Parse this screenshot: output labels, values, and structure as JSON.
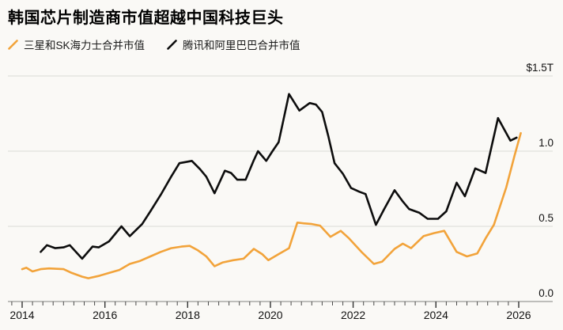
{
  "header": {
    "title": "韩国芯片制造商市值超越中国科技巨头"
  },
  "legend": [
    {
      "label": "三星和SK海力士合并市值",
      "color": "#f2a33a"
    },
    {
      "label": "腾讯和阿里巴巴合并市值",
      "color": "#0d0d0d"
    }
  ],
  "chart_data": {
    "type": "line",
    "title": "韩国芯片制造商市值超越中国科技巨头",
    "unit": "$T",
    "legend_position": "top-left",
    "grid": "horizontal",
    "x_axis": {
      "tick_labels": [
        "2014",
        "2016",
        "2018",
        "2020",
        "2022",
        "2024",
        "2026"
      ],
      "tick_years": [
        2014,
        2016,
        2018,
        2020,
        2022,
        2024,
        2026
      ],
      "minor_tick_step_years": 0.25,
      "minor_tick_start": 2013.75,
      "minor_tick_end": 2026.0,
      "range": [
        2013.6,
        2026.9
      ]
    },
    "y_axis": {
      "position": "right",
      "range": [
        0,
        1.5
      ],
      "ticks": [
        {
          "value": 1.5,
          "label": "$1.5T"
        },
        {
          "value": 1.0,
          "label": "1.0"
        },
        {
          "value": 0.5,
          "label": "0.5"
        },
        {
          "value": 0.0,
          "label": "0.0"
        }
      ]
    },
    "series": [
      {
        "name": "腾讯和阿里巴巴合并市值",
        "color": "#0d0d0d",
        "points": [
          [
            2014.45,
            0.33
          ],
          [
            2014.6,
            0.375
          ],
          [
            2014.8,
            0.355
          ],
          [
            2015.0,
            0.36
          ],
          [
            2015.15,
            0.375
          ],
          [
            2015.45,
            0.285
          ],
          [
            2015.7,
            0.365
          ],
          [
            2015.85,
            0.36
          ],
          [
            2016.1,
            0.4
          ],
          [
            2016.4,
            0.5
          ],
          [
            2016.6,
            0.435
          ],
          [
            2016.9,
            0.515
          ],
          [
            2017.1,
            0.6
          ],
          [
            2017.35,
            0.71
          ],
          [
            2017.6,
            0.83
          ],
          [
            2017.8,
            0.92
          ],
          [
            2018.0,
            0.93
          ],
          [
            2018.1,
            0.935
          ],
          [
            2018.3,
            0.88
          ],
          [
            2018.45,
            0.83
          ],
          [
            2018.65,
            0.72
          ],
          [
            2018.9,
            0.87
          ],
          [
            2019.05,
            0.855
          ],
          [
            2019.2,
            0.81
          ],
          [
            2019.4,
            0.81
          ],
          [
            2019.6,
            0.94
          ],
          [
            2019.7,
            1.0
          ],
          [
            2019.9,
            0.935
          ],
          [
            2020.05,
            1.0
          ],
          [
            2020.2,
            1.06
          ],
          [
            2020.45,
            1.38
          ],
          [
            2020.7,
            1.27
          ],
          [
            2020.95,
            1.32
          ],
          [
            2021.1,
            1.31
          ],
          [
            2021.25,
            1.26
          ],
          [
            2021.4,
            1.1
          ],
          [
            2021.55,
            0.92
          ],
          [
            2021.75,
            0.85
          ],
          [
            2021.95,
            0.755
          ],
          [
            2022.15,
            0.73
          ],
          [
            2022.3,
            0.715
          ],
          [
            2022.55,
            0.51
          ],
          [
            2022.75,
            0.615
          ],
          [
            2023.0,
            0.74
          ],
          [
            2023.2,
            0.665
          ],
          [
            2023.35,
            0.615
          ],
          [
            2023.6,
            0.59
          ],
          [
            2023.8,
            0.55
          ],
          [
            2024.05,
            0.55
          ],
          [
            2024.25,
            0.6
          ],
          [
            2024.5,
            0.79
          ],
          [
            2024.7,
            0.7
          ],
          [
            2024.95,
            0.885
          ],
          [
            2025.2,
            0.855
          ],
          [
            2025.5,
            1.22
          ],
          [
            2025.8,
            1.07
          ],
          [
            2025.95,
            1.09
          ]
        ]
      },
      {
        "name": "三星和SK海力士合并市值",
        "color": "#f2a33a",
        "points": [
          [
            2014.0,
            0.215
          ],
          [
            2014.1,
            0.225
          ],
          [
            2014.25,
            0.2
          ],
          [
            2014.45,
            0.215
          ],
          [
            2014.65,
            0.22
          ],
          [
            2015.0,
            0.215
          ],
          [
            2015.2,
            0.19
          ],
          [
            2015.45,
            0.165
          ],
          [
            2015.6,
            0.155
          ],
          [
            2015.85,
            0.17
          ],
          [
            2016.1,
            0.19
          ],
          [
            2016.35,
            0.21
          ],
          [
            2016.6,
            0.25
          ],
          [
            2016.85,
            0.27
          ],
          [
            2017.1,
            0.3
          ],
          [
            2017.35,
            0.33
          ],
          [
            2017.6,
            0.355
          ],
          [
            2017.85,
            0.365
          ],
          [
            2018.05,
            0.37
          ],
          [
            2018.25,
            0.34
          ],
          [
            2018.45,
            0.3
          ],
          [
            2018.65,
            0.235
          ],
          [
            2018.85,
            0.26
          ],
          [
            2019.1,
            0.275
          ],
          [
            2019.35,
            0.285
          ],
          [
            2019.6,
            0.35
          ],
          [
            2019.8,
            0.315
          ],
          [
            2019.95,
            0.275
          ],
          [
            2020.2,
            0.315
          ],
          [
            2020.45,
            0.355
          ],
          [
            2020.65,
            0.525
          ],
          [
            2020.8,
            0.52
          ],
          [
            2021.0,
            0.515
          ],
          [
            2021.2,
            0.505
          ],
          [
            2021.45,
            0.43
          ],
          [
            2021.7,
            0.47
          ],
          [
            2021.9,
            0.42
          ],
          [
            2022.2,
            0.33
          ],
          [
            2022.5,
            0.25
          ],
          [
            2022.7,
            0.265
          ],
          [
            2023.0,
            0.35
          ],
          [
            2023.2,
            0.385
          ],
          [
            2023.4,
            0.355
          ],
          [
            2023.7,
            0.435
          ],
          [
            2023.95,
            0.455
          ],
          [
            2024.2,
            0.47
          ],
          [
            2024.5,
            0.33
          ],
          [
            2024.75,
            0.3
          ],
          [
            2025.0,
            0.32
          ],
          [
            2025.2,
            0.42
          ],
          [
            2025.4,
            0.51
          ],
          [
            2025.7,
            0.76
          ],
          [
            2025.9,
            0.97
          ],
          [
            2026.05,
            1.12
          ]
        ]
      }
    ]
  },
  "colors": {
    "background": "#faf9f6",
    "gridline": "#dbdad6",
    "axis_line": "#9b9b98",
    "tick": "#4a4a4a",
    "text": "#111111",
    "title": "#000000"
  }
}
